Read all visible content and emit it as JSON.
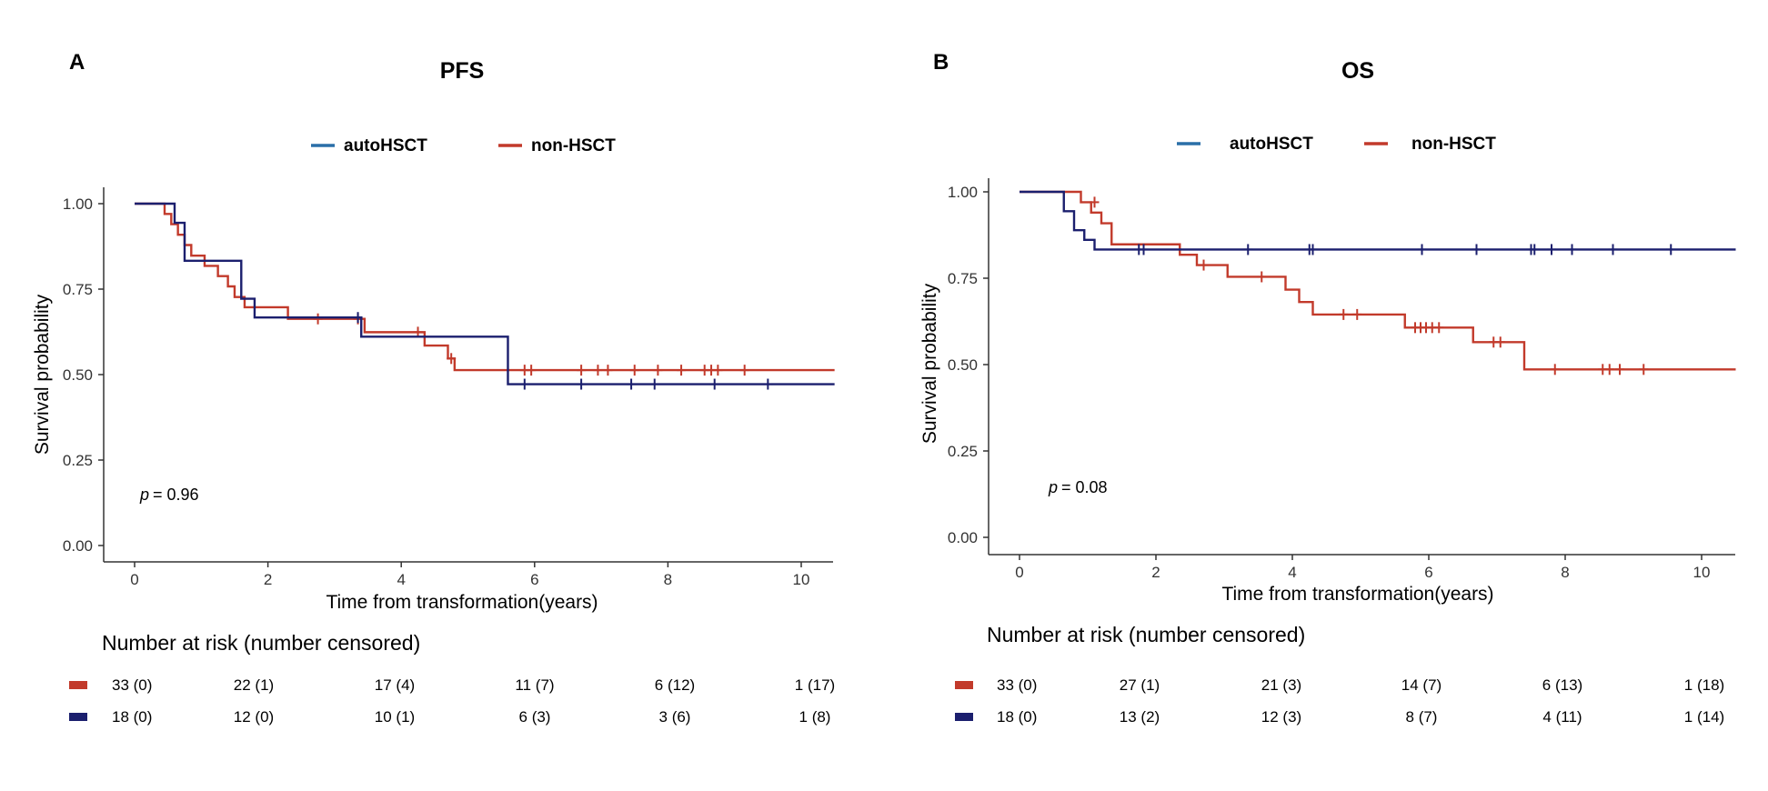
{
  "colors": {
    "autoHSCT": "#1b1f6e",
    "nonHSCT": "#c23a2b",
    "legend_autoHSCT": "#2a6fa8",
    "axis": "#333333"
  },
  "chart_data": [
    {
      "panel": "A",
      "type": "line",
      "step": true,
      "title": "PFS",
      "xlabel": "Time from transformation(years)",
      "ylabel": "Survival probability",
      "xlim": [
        0,
        10.5
      ],
      "ylim": [
        0,
        1
      ],
      "xticks": [
        0,
        2,
        4,
        6,
        8,
        10
      ],
      "xtick_labels": [
        "0",
        "2",
        "4",
        "6",
        "8",
        "10"
      ],
      "yticks": [
        0,
        0.25,
        0.5,
        0.75,
        1
      ],
      "ytick_labels": [
        "0.00",
        "0.25",
        "0.50",
        "0.75",
        "1.00"
      ],
      "legend": {
        "position": "top",
        "items": [
          "autoHSCT",
          "non-HSCT"
        ]
      },
      "annotation": {
        "p_symbol": "p",
        "p_text": "= 0.96"
      },
      "series": [
        {
          "name": "autoHSCT",
          "key": "autoHSCT",
          "x": [
            0,
            0.6,
            0.75,
            1.6,
            1.8,
            3.4,
            5.6,
            10.5
          ],
          "y": [
            1.0,
            0.944,
            0.833,
            0.722,
            0.667,
            0.611,
            0.472,
            0.472
          ],
          "censor_x": [
            3.35,
            5.85,
            6.7,
            7.45,
            7.8,
            8.7,
            9.5
          ],
          "censor_y": [
            0.667,
            0.472,
            0.472,
            0.472,
            0.472,
            0.472,
            0.472
          ]
        },
        {
          "name": "non-HSCT",
          "key": "nonHSCT",
          "x": [
            0,
            0.45,
            0.55,
            0.65,
            0.75,
            0.85,
            1.05,
            1.25,
            1.4,
            1.5,
            1.65,
            2.3,
            3.45,
            4.35,
            4.7,
            4.8,
            10.5
          ],
          "y": [
            1.0,
            0.97,
            0.94,
            0.909,
            0.879,
            0.848,
            0.818,
            0.788,
            0.758,
            0.727,
            0.697,
            0.663,
            0.624,
            0.585,
            0.547,
            0.513,
            0.513
          ],
          "censor_x": [
            2.75,
            3.35,
            4.25,
            4.75,
            5.85,
            5.95,
            6.7,
            6.95,
            7.1,
            7.5,
            7.85,
            8.2,
            8.55,
            8.65,
            8.75,
            9.15
          ],
          "censor_y": [
            0.663,
            0.663,
            0.624,
            0.547,
            0.513,
            0.513,
            0.513,
            0.513,
            0.513,
            0.513,
            0.513,
            0.513,
            0.513,
            0.513,
            0.513,
            0.513
          ]
        }
      ],
      "risk_table": {
        "title": "Number at risk (number censored)",
        "rows": [
          {
            "key": "nonHSCT",
            "values": [
              "33 (0)",
              "22 (1)",
              "17 (4)",
              "11 (7)",
              "6 (12)",
              "1 (17)"
            ]
          },
          {
            "key": "autoHSCT",
            "values": [
              "18 (0)",
              "12 (0)",
              "10 (1)",
              "6 (3)",
              "3 (6)",
              "1 (8)"
            ]
          }
        ]
      }
    },
    {
      "panel": "B",
      "type": "line",
      "step": true,
      "title": "OS",
      "xlabel": "Time from transformation(years)",
      "ylabel": "Survival probability",
      "xlim": [
        0,
        10.5
      ],
      "ylim": [
        0,
        1
      ],
      "xticks": [
        0,
        2,
        4,
        6,
        8,
        10
      ],
      "xtick_labels": [
        "0",
        "2",
        "4",
        "6",
        "8",
        "10"
      ],
      "yticks": [
        0,
        0.25,
        0.5,
        0.75,
        1
      ],
      "ytick_labels": [
        "0.00",
        "0.25",
        "0.50",
        "0.75",
        "1.00"
      ],
      "legend": {
        "position": "top",
        "items": [
          "autoHSCT",
          "non-HSCT"
        ]
      },
      "annotation": {
        "p_symbol": "p",
        "p_text": "= 0.08"
      },
      "series": [
        {
          "name": "autoHSCT",
          "key": "autoHSCT",
          "x": [
            0,
            0.65,
            0.8,
            0.95,
            1.1,
            10.5
          ],
          "y": [
            1.0,
            0.944,
            0.889,
            0.861,
            0.833,
            0.833
          ],
          "censor_x": [
            1.75,
            1.82,
            3.35,
            4.25,
            4.3,
            5.9,
            6.7,
            7.5,
            7.55,
            7.8,
            8.1,
            8.7,
            9.55
          ],
          "censor_y": [
            0.833,
            0.833,
            0.833,
            0.833,
            0.833,
            0.833,
            0.833,
            0.833,
            0.833,
            0.833,
            0.833,
            0.833,
            0.833
          ]
        },
        {
          "name": "non-HSCT",
          "key": "nonHSCT",
          "x": [
            0,
            0.9,
            1.05,
            1.2,
            1.35,
            2.35,
            2.6,
            3.05,
            3.9,
            4.1,
            4.3,
            5.65,
            6.65,
            7.4,
            10.5
          ],
          "y": [
            1.0,
            0.97,
            0.94,
            0.909,
            0.848,
            0.818,
            0.788,
            0.754,
            0.717,
            0.681,
            0.645,
            0.607,
            0.565,
            0.486,
            0.486
          ],
          "censor_x": [
            1.1,
            2.7,
            3.55,
            4.75,
            4.95,
            5.8,
            5.88,
            5.96,
            6.05,
            6.15,
            6.95,
            7.05,
            7.85,
            8.55,
            8.65,
            8.8,
            9.15
          ],
          "censor_y": [
            0.97,
            0.788,
            0.754,
            0.645,
            0.645,
            0.607,
            0.607,
            0.607,
            0.607,
            0.607,
            0.565,
            0.565,
            0.486,
            0.486,
            0.486,
            0.486,
            0.486
          ]
        }
      ],
      "risk_table": {
        "title": "Number at risk (number censored)",
        "rows": [
          {
            "key": "nonHSCT",
            "values": [
              "33 (0)",
              "27 (1)",
              "21 (3)",
              "14 (7)",
              "6 (13)",
              "1 (18)"
            ]
          },
          {
            "key": "autoHSCT",
            "values": [
              "18 (0)",
              "13 (2)",
              "12 (3)",
              "8 (7)",
              "4 (11)",
              "1 (14)"
            ]
          }
        ]
      }
    }
  ]
}
